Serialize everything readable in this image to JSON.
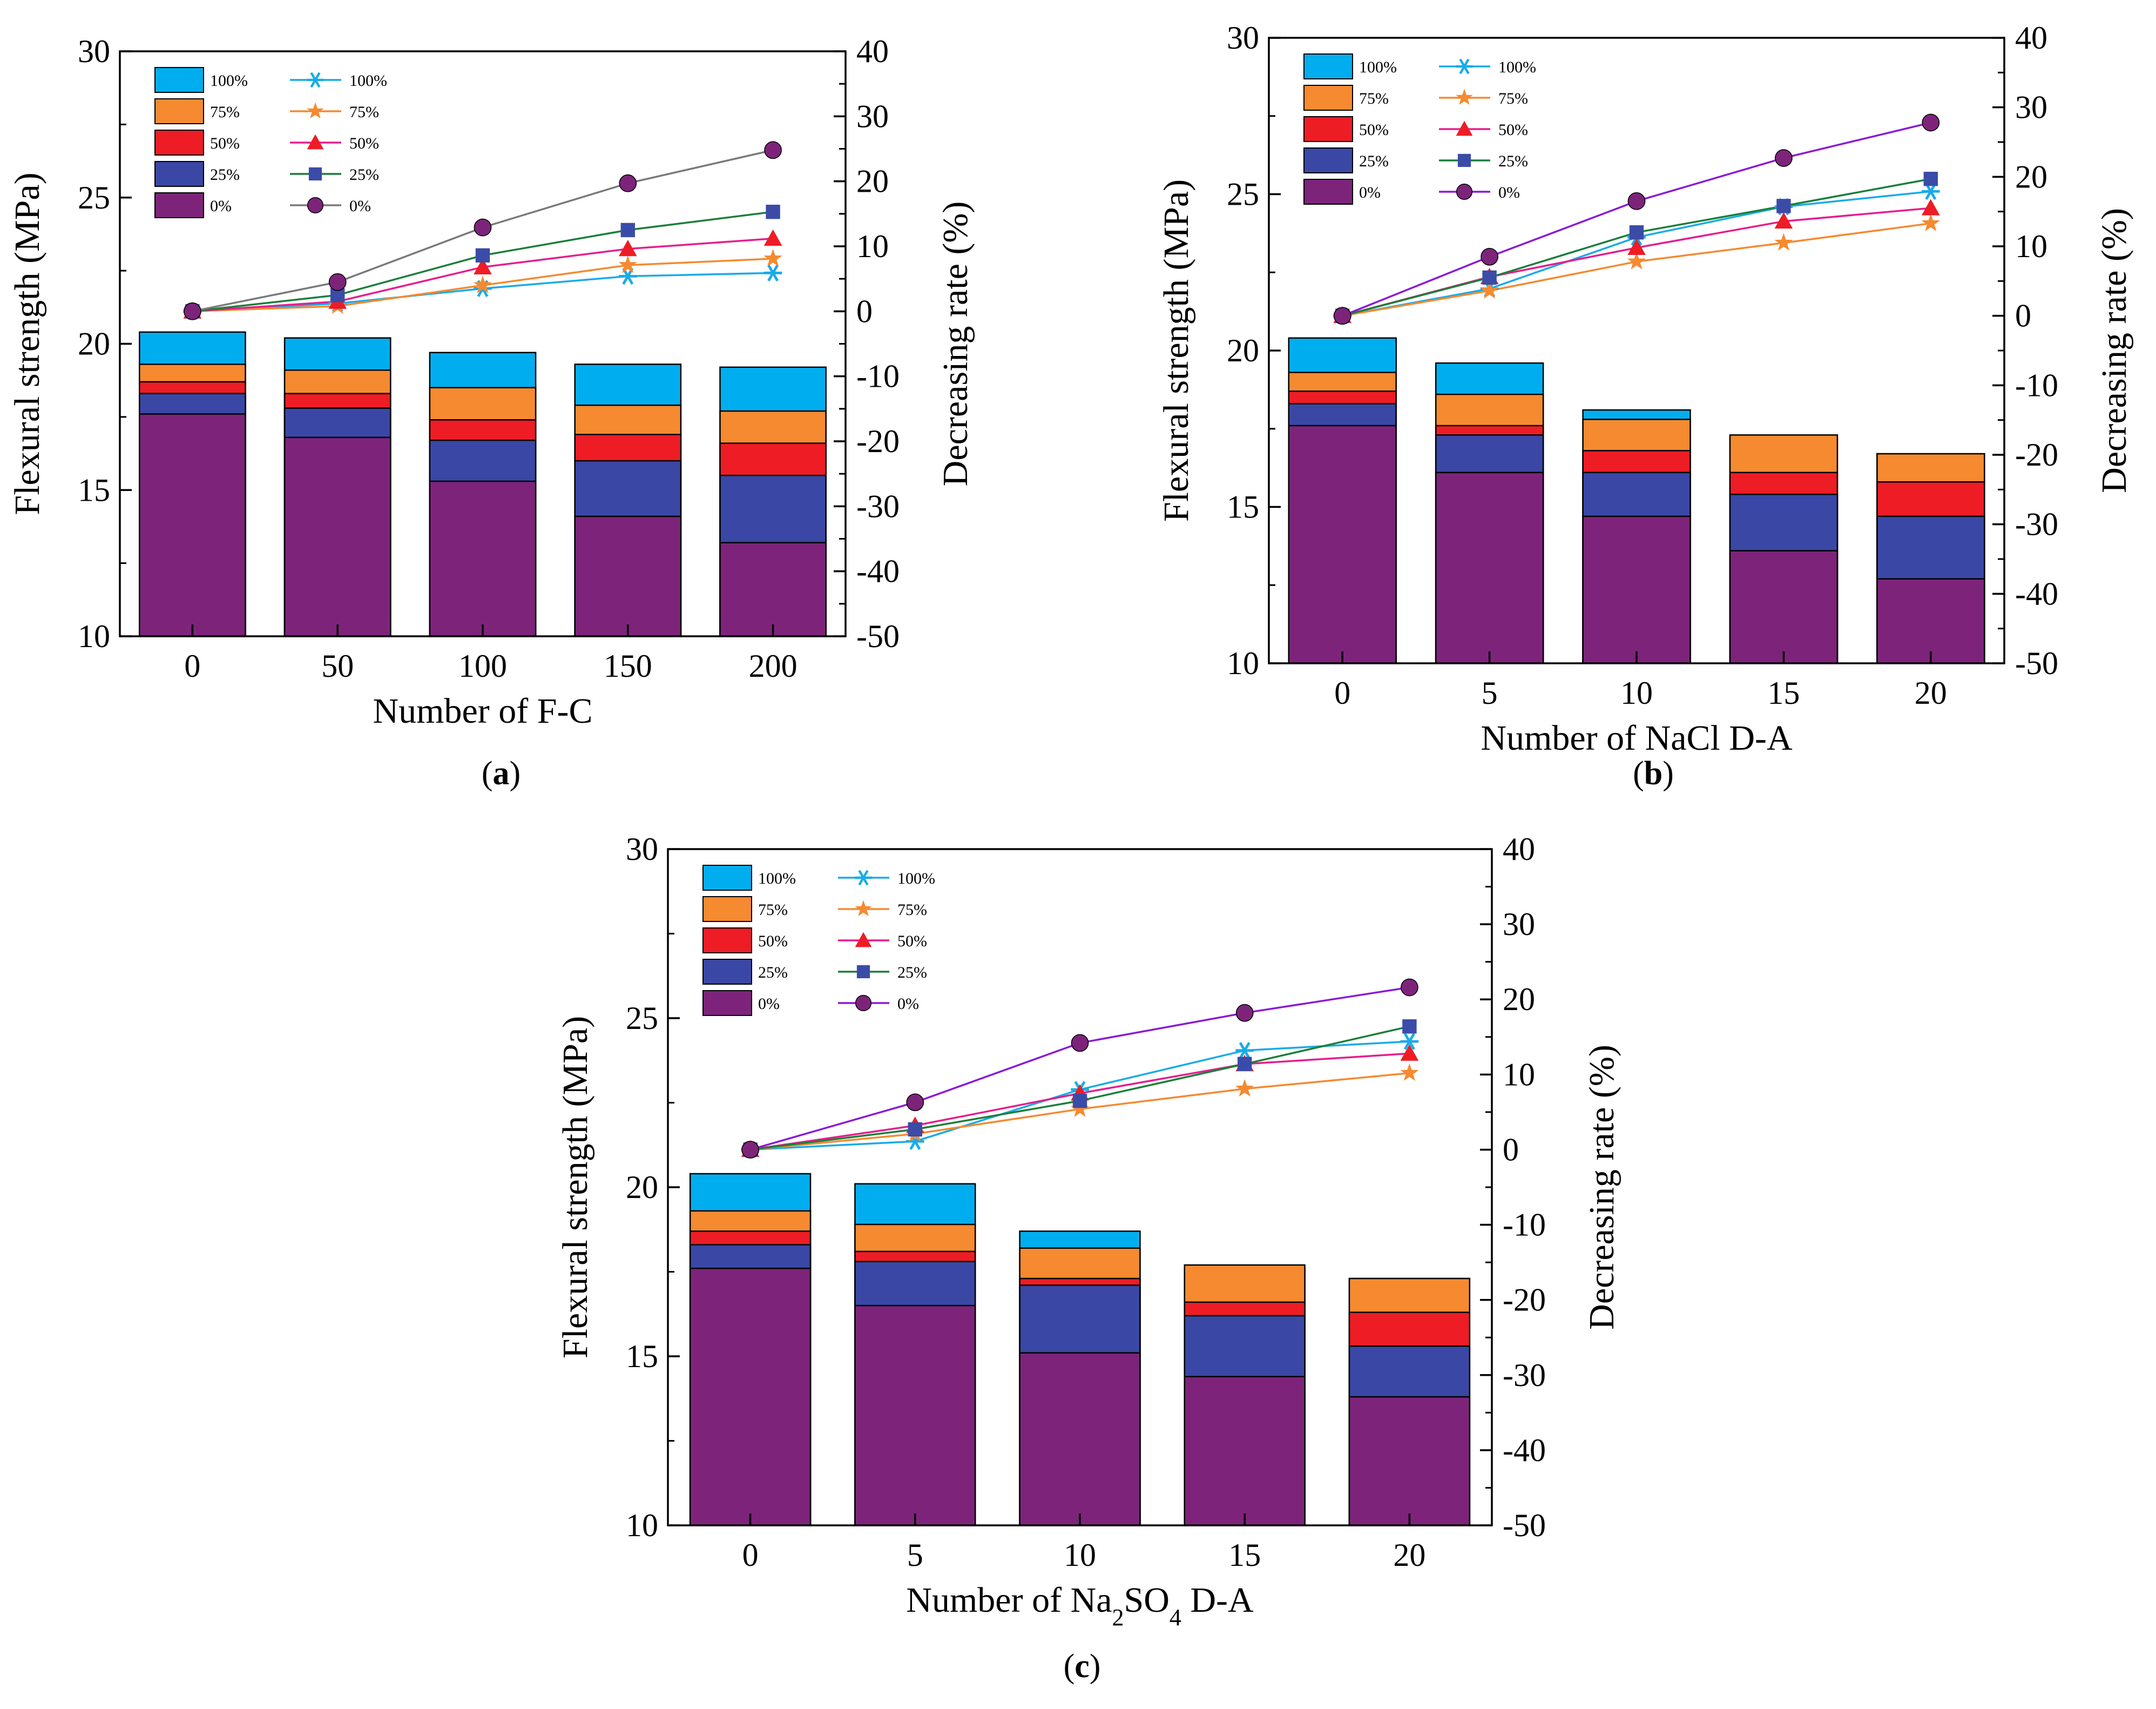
{
  "colors": {
    "p100": "#00AEEF",
    "p75": "#F58A30",
    "p50": "#EE1C25",
    "p25": "#3A47A5",
    "p0": "#7D247A",
    "l100": "#19ABE8",
    "l75": "#F58A30",
    "l50": "#E61E8C",
    "l25": "#1B7F3A",
    "l0": "#8B1AD6",
    "l0_a": "#7A7A7A",
    "m0": "#7D247A",
    "m25": "#3B4BA8",
    "m50": "#EE1C25",
    "m75": "#F58A30",
    "m100": "#19ABE8"
  },
  "chart_data": [
    {
      "id": "a",
      "type": "bar",
      "panel_label": "a",
      "xlabel": "Number of F-C",
      "ylabel": "Flexural strength (MPa)",
      "y2label": "Decreasing rate (%)",
      "categories": [
        "0",
        "50",
        "100",
        "150",
        "200"
      ],
      "ylim": [
        10,
        30
      ],
      "yticks": [
        "10",
        "15",
        "20",
        "25",
        "30"
      ],
      "y2lim": [
        -50,
        40
      ],
      "y2ticks": [
        "-50",
        "-40",
        "-30",
        "-20",
        "-10",
        "0",
        "10",
        "20",
        "30",
        "40"
      ],
      "bar_series": [
        {
          "name": "100%",
          "values": [
            20.4,
            20.2,
            19.7,
            19.3,
            19.2
          ]
        },
        {
          "name": "75%",
          "values": [
            19.3,
            19.1,
            18.5,
            17.9,
            17.7
          ]
        },
        {
          "name": "50%",
          "values": [
            18.7,
            18.3,
            17.4,
            16.9,
            16.6
          ]
        },
        {
          "name": "25%",
          "values": [
            18.3,
            17.8,
            16.7,
            16.0,
            15.5
          ]
        },
        {
          "name": "0%",
          "values": [
            17.6,
            16.8,
            15.3,
            14.1,
            13.2
          ]
        }
      ],
      "line_series": [
        {
          "name": "100%",
          "values": [
            0,
            1.2,
            3.5,
            5.4,
            5.9
          ]
        },
        {
          "name": "75%",
          "values": [
            0,
            0.8,
            4.0,
            7.1,
            8.1
          ]
        },
        {
          "name": "50%",
          "values": [
            0,
            1.5,
            6.8,
            9.6,
            11.2
          ]
        },
        {
          "name": "25%",
          "values": [
            0,
            2.5,
            8.6,
            12.5,
            15.3
          ]
        },
        {
          "name": "0%",
          "values": [
            0,
            4.5,
            12.9,
            19.7,
            24.8
          ]
        }
      ]
    },
    {
      "id": "b",
      "type": "bar",
      "panel_label": "b",
      "xlabel": "Number of NaCl D-A",
      "ylabel": "Flexural strength (MPa)",
      "y2label": "Decreasing rate (%)",
      "categories": [
        "0",
        "5",
        "10",
        "15",
        "20"
      ],
      "ylim": [
        10,
        30
      ],
      "yticks": [
        "10",
        "15",
        "20",
        "25",
        "30"
      ],
      "y2lim": [
        -50,
        40
      ],
      "y2ticks": [
        "-50",
        "-40",
        "-30",
        "-20",
        "-10",
        "0",
        "10",
        "20",
        "30",
        "40"
      ],
      "bar_series": [
        {
          "name": "100%",
          "values": [
            20.4,
            19.6,
            18.1,
            17.2,
            16.7
          ]
        },
        {
          "name": "75%",
          "values": [
            19.3,
            18.6,
            17.8,
            17.3,
            16.7
          ]
        },
        {
          "name": "50%",
          "values": [
            18.7,
            17.6,
            16.8,
            16.1,
            15.8
          ]
        },
        {
          "name": "25%",
          "values": [
            18.3,
            17.3,
            16.1,
            15.4,
            14.7
          ]
        },
        {
          "name": "0%",
          "values": [
            17.6,
            16.1,
            14.7,
            13.6,
            12.7
          ]
        }
      ],
      "line_series": [
        {
          "name": "100%",
          "values": [
            0,
            3.9,
            11.3,
            15.7,
            17.9
          ]
        },
        {
          "name": "75%",
          "values": [
            0,
            3.6,
            7.8,
            10.5,
            13.3
          ]
        },
        {
          "name": "50%",
          "values": [
            0,
            5.6,
            9.8,
            13.6,
            15.5
          ]
        },
        {
          "name": "25%",
          "values": [
            0,
            5.5,
            12.0,
            15.8,
            19.7
          ]
        },
        {
          "name": "0%",
          "values": [
            0,
            8.5,
            16.5,
            22.7,
            27.8
          ]
        }
      ]
    },
    {
      "id": "c",
      "type": "bar",
      "panel_label": "c",
      "xlabel_parts": [
        "Number of Na",
        "2",
        "SO",
        "4",
        " D-A"
      ],
      "ylabel": "Flexural strength (MPa)",
      "y2label": "Decreasing rate (%)",
      "categories": [
        "0",
        "5",
        "10",
        "15",
        "20"
      ],
      "ylim": [
        10,
        30
      ],
      "yticks": [
        "10",
        "15",
        "20",
        "25",
        "30"
      ],
      "y2lim": [
        -50,
        40
      ],
      "y2ticks": [
        "-50",
        "-40",
        "-30",
        "-20",
        "-10",
        "0",
        "10",
        "20",
        "30",
        "40"
      ],
      "bar_series": [
        {
          "name": "100%",
          "values": [
            20.4,
            20.1,
            18.7,
            17.6,
            17.3
          ]
        },
        {
          "name": "75%",
          "values": [
            19.3,
            18.9,
            18.2,
            17.7,
            17.3
          ]
        },
        {
          "name": "50%",
          "values": [
            18.7,
            18.1,
            17.3,
            16.6,
            16.3
          ]
        },
        {
          "name": "25%",
          "values": [
            18.3,
            17.8,
            17.1,
            16.2,
            15.3
          ]
        },
        {
          "name": "0%",
          "values": [
            17.6,
            16.5,
            15.1,
            14.4,
            13.8
          ]
        }
      ],
      "line_series": [
        {
          "name": "100%",
          "values": [
            0,
            1.1,
            8.0,
            13.2,
            14.4
          ]
        },
        {
          "name": "75%",
          "values": [
            0,
            2.1,
            5.4,
            8.1,
            10.2
          ]
        },
        {
          "name": "50%",
          "values": [
            0,
            3.2,
            7.5,
            11.4,
            12.8
          ]
        },
        {
          "name": "25%",
          "values": [
            0,
            2.7,
            6.5,
            11.4,
            16.4
          ]
        },
        {
          "name": "0%",
          "values": [
            0,
            6.3,
            14.2,
            18.2,
            21.6
          ]
        }
      ]
    }
  ]
}
